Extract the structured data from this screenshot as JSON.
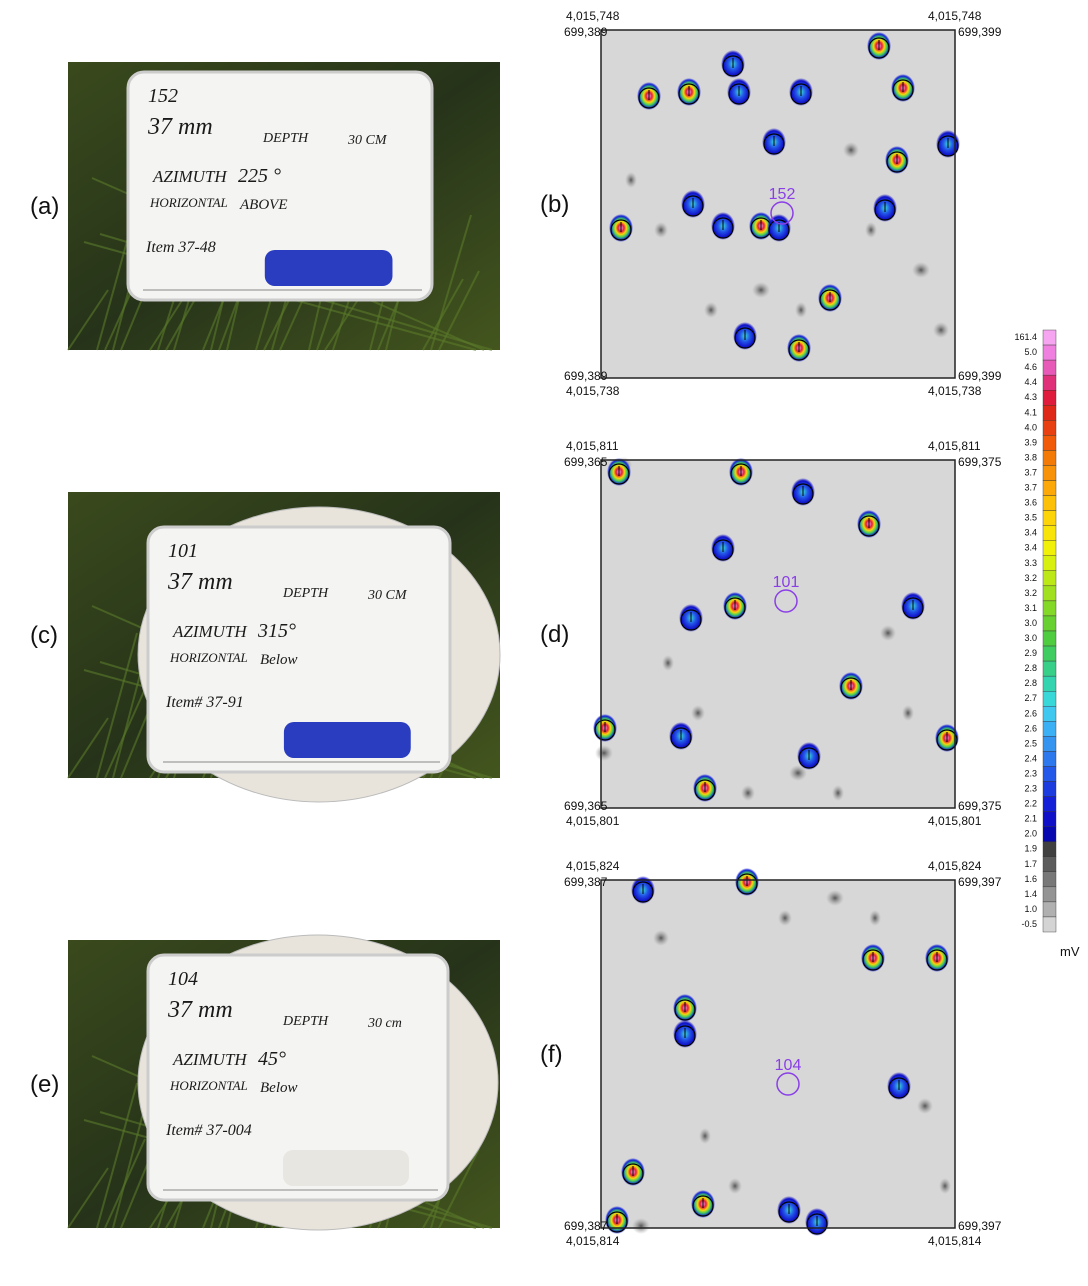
{
  "photos": [
    {
      "label": "(a)",
      "board": [
        "152",
        "37 mm",
        "DEPTH",
        "30 CM",
        "AZIMUTH",
        "225 °",
        "HORIZONTAL",
        "ABOVE",
        "Item 37-48"
      ]
    },
    {
      "label": "(c)",
      "board": [
        "101",
        "37 mm",
        "DEPTH",
        "30 CM",
        "AZIMUTH",
        "315°",
        "HORIZONTAL",
        "Below",
        "Item# 37-91"
      ]
    },
    {
      "label": "(e)",
      "board": [
        "104",
        "37 mm",
        "DEPTH",
        "30 cm",
        "AZIMUTH",
        "45°",
        "HORIZONTAL",
        "Below",
        "Item# 37-004"
      ]
    }
  ],
  "maps": [
    {
      "label": "(b)",
      "top_north": [
        "4,015,748",
        "4,015,748"
      ],
      "top_east": [
        "699,389",
        "699,399"
      ],
      "bottom_east": [
        "699,389",
        "699,399"
      ],
      "bottom_north": [
        "4,015,738",
        "4,015,738"
      ],
      "target": "152"
    },
    {
      "label": "(d)",
      "top_north": [
        "4,015,811",
        "4,015,811"
      ],
      "top_east": [
        "699,365",
        "699,375"
      ],
      "bottom_east": [
        "699,365",
        "699,375"
      ],
      "bottom_north": [
        "4,015,801",
        "4,015,801"
      ],
      "target": "101"
    },
    {
      "label": "(f)",
      "top_north": [
        "4,015,824",
        "4,015,824"
      ],
      "top_east": [
        "699,387",
        "699,397"
      ],
      "bottom_east": [
        "699,387",
        "699,397"
      ],
      "bottom_north": [
        "4,015,814",
        "4,015,814"
      ],
      "target": "104"
    }
  ],
  "colorbar": {
    "labels": [
      "161.4",
      "5.0",
      "4.6",
      "4.4",
      "4.3",
      "4.1",
      "4.0",
      "3.9",
      "3.8",
      "3.7",
      "3.7",
      "3.6",
      "3.5",
      "3.4",
      "3.4",
      "3.3",
      "3.2",
      "3.2",
      "3.1",
      "3.0",
      "3.0",
      "2.9",
      "2.8",
      "2.8",
      "2.7",
      "2.6",
      "2.6",
      "2.5",
      "2.4",
      "2.3",
      "2.3",
      "2.2",
      "2.1",
      "2.0",
      "1.9",
      "1.7",
      "1.6",
      "1.4",
      "1.0",
      "-0.5"
    ],
    "colors": [
      "#f6a6f0",
      "#f080e0",
      "#e85ab8",
      "#e0307a",
      "#e01c3c",
      "#e02818",
      "#e84010",
      "#f05a08",
      "#f47a08",
      "#f89208",
      "#fca808",
      "#fcc008",
      "#fcd408",
      "#f8e408",
      "#f0f008",
      "#d8f010",
      "#bce818",
      "#a0e020",
      "#84d828",
      "#68d030",
      "#50cc40",
      "#40cc60",
      "#38d088",
      "#34d4b0",
      "#38d8d8",
      "#40c8f0",
      "#3cb0f4",
      "#3494f0",
      "#2c78ec",
      "#2458e8",
      "#1c3ce0",
      "#1420d8",
      "#1010c8",
      "#0808b0",
      "#404040",
      "#5c5c5c",
      "#787878",
      "#949494",
      "#b0b0b0",
      "#d4d4d4"
    ],
    "unit": "mV"
  }
}
